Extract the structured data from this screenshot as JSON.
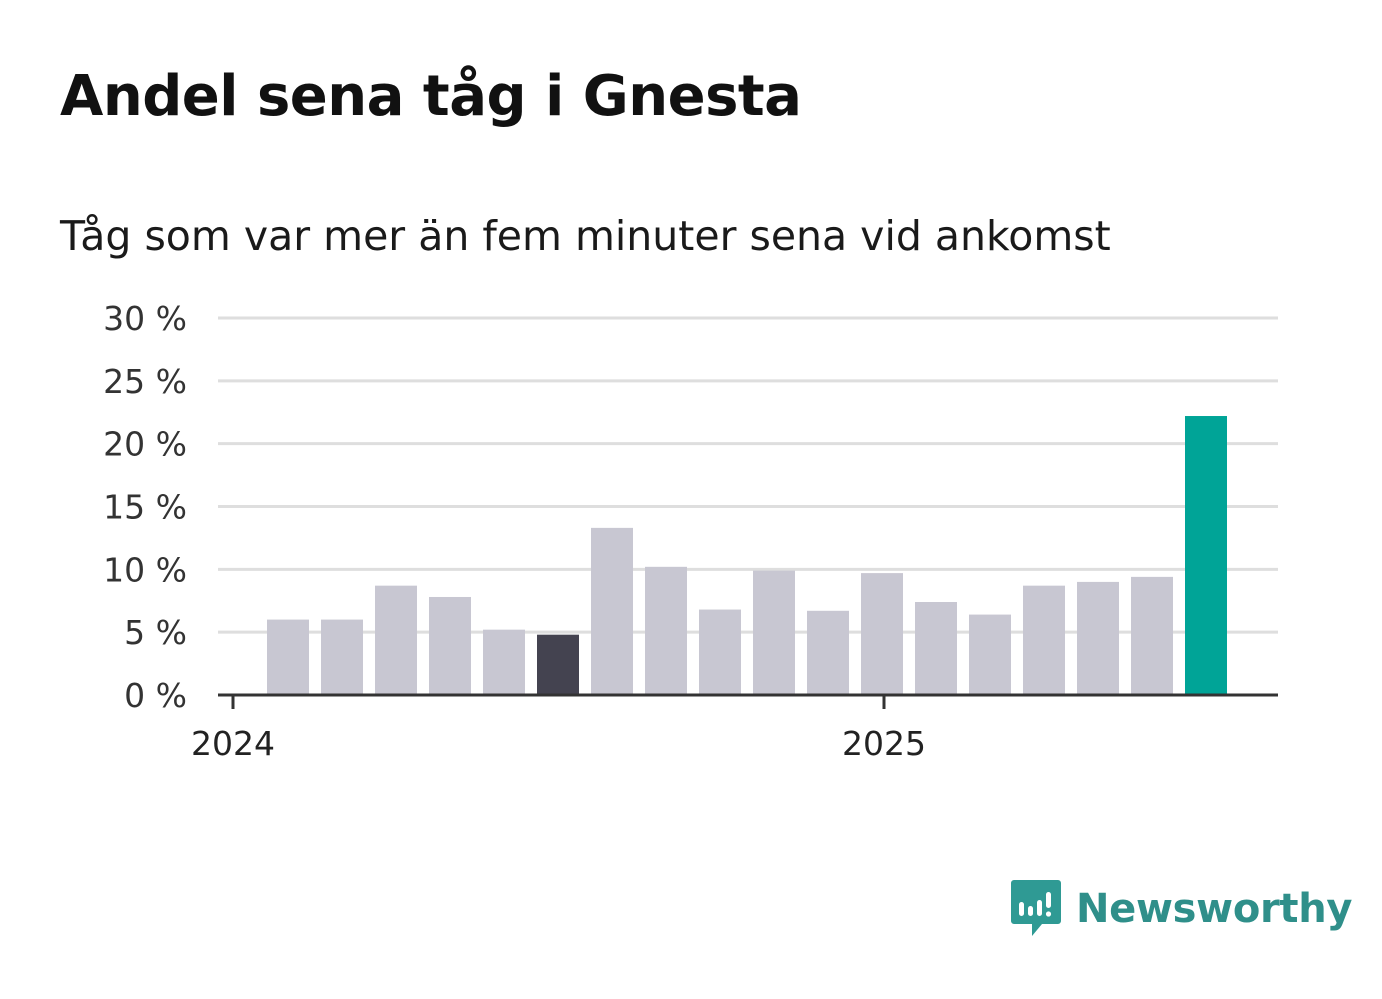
{
  "header": {
    "title": "Andel sena tåg i Gnesta",
    "subtitle": "Tåg som var mer än fem minuter sena vid ankomst"
  },
  "brand": {
    "name": "Newsworthy",
    "icon": "newsworthy-logo-icon",
    "color": "#2f9a94"
  },
  "colors": {
    "default_bar": "#c8c7d2",
    "highlight_bar": "#444350",
    "latest_bar": "#00a497",
    "grid": "#dedede",
    "axis": "#333333"
  },
  "chart_data": {
    "type": "bar",
    "ylim": [
      0,
      30
    ],
    "yticks": [
      0,
      5,
      10,
      15,
      20,
      25,
      30
    ],
    "ytick_labels": [
      "0 %",
      "5 %",
      "10 %",
      "15 %",
      "20 %",
      "25 %",
      "30 %"
    ],
    "x_tick_labels": [
      "2024",
      "2025"
    ],
    "grid": true,
    "values": [
      6.0,
      6.0,
      8.7,
      7.8,
      5.2,
      4.8,
      13.3,
      10.2,
      6.8,
      9.9,
      6.7,
      9.7,
      7.4,
      6.4,
      8.7,
      9.0,
      9.4,
      22.2
    ],
    "highlight_index": 5,
    "latest_index": 17
  }
}
